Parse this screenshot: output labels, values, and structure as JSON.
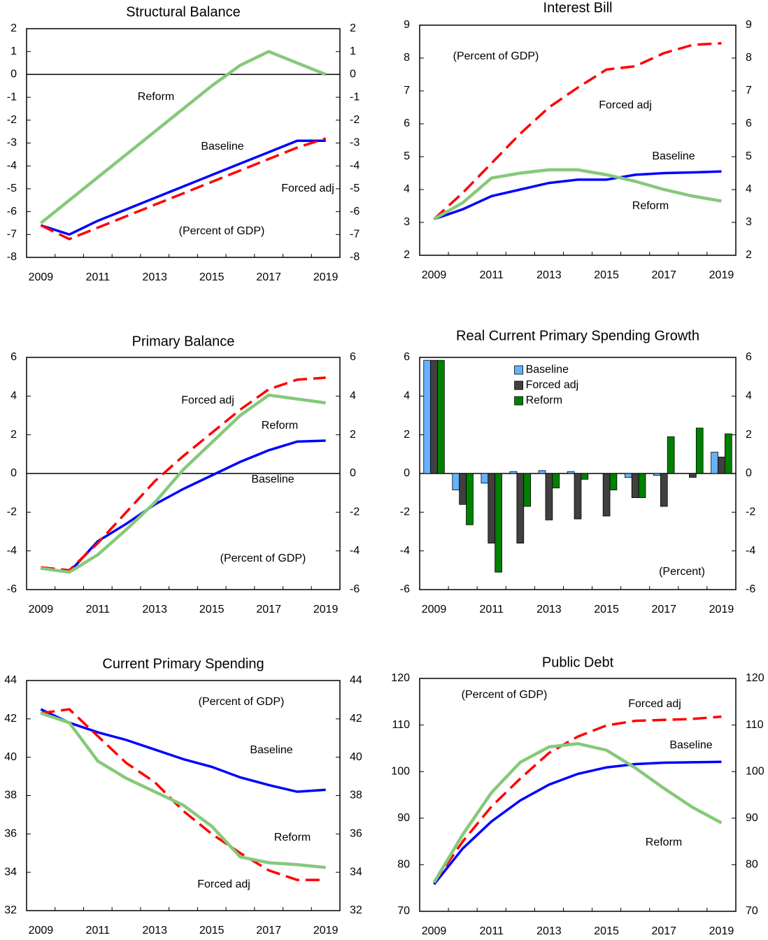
{
  "chart_data": [
    {
      "type": "line",
      "title": "Structural Balance",
      "note": "(Percent of GDP)",
      "categories": [
        "2009",
        null,
        "2011",
        null,
        "2013",
        null,
        "2015",
        null,
        "2017",
        null,
        "2019"
      ],
      "ylim": [
        -8,
        2
      ],
      "yticks": [
        -8,
        -7,
        -6,
        -5,
        -4,
        -3,
        -2,
        -1,
        0,
        1,
        2
      ],
      "zero_line": true,
      "series": [
        {
          "name": "Baseline",
          "color": "#0000ff",
          "values": [
            -6.6,
            -7.0,
            -6.4,
            -5.9,
            -5.4,
            -4.9,
            -4.4,
            -3.9,
            -3.4,
            -2.9,
            -2.9
          ]
        },
        {
          "name": "Forced adj",
          "color": "#ff0000",
          "dashed": true,
          "values": [
            -6.6,
            -7.2,
            -6.7,
            -6.2,
            -5.7,
            -5.2,
            -4.7,
            -4.2,
            -3.7,
            -3.2,
            -2.8
          ]
        },
        {
          "name": "Reform",
          "color": "#86c97a",
          "values": [
            -6.5,
            -5.5,
            -4.5,
            -3.5,
            -2.5,
            -1.5,
            -0.5,
            0.4,
            1.0,
            0.5,
            0.0
          ]
        }
      ]
    },
    {
      "type": "line",
      "title": "Interest Bill",
      "note": "(Percent of GDP)",
      "categories": [
        "2009",
        null,
        "2011",
        null,
        "2013",
        null,
        "2015",
        null,
        "2017",
        null,
        "2019"
      ],
      "ylim": [
        2,
        9
      ],
      "yticks": [
        2,
        3,
        4,
        5,
        6,
        7,
        8,
        9
      ],
      "zero_line": false,
      "series": [
        {
          "name": "Baseline",
          "color": "#0000ff",
          "values": [
            3.1,
            3.4,
            3.8,
            4.0,
            4.2,
            4.3,
            4.3,
            4.45,
            4.5,
            4.52,
            4.55
          ]
        },
        {
          "name": "Forced adj",
          "color": "#ff0000",
          "dashed": true,
          "values": [
            3.1,
            3.9,
            4.8,
            5.7,
            6.5,
            7.1,
            7.65,
            7.75,
            8.15,
            8.4,
            8.45
          ]
        },
        {
          "name": "Reform",
          "color": "#86c97a",
          "values": [
            3.1,
            3.6,
            4.35,
            4.5,
            4.6,
            4.6,
            4.45,
            4.25,
            4.0,
            3.8,
            3.65
          ]
        }
      ]
    },
    {
      "type": "line",
      "title": "Primary Balance",
      "note": "(Percent of GDP)",
      "categories": [
        "2009",
        null,
        "2011",
        null,
        "2013",
        null,
        "2015",
        null,
        "2017",
        null,
        "2019"
      ],
      "ylim": [
        -6,
        6
      ],
      "yticks": [
        -6,
        -4,
        -2,
        0,
        2,
        4,
        6
      ],
      "zero_line": true,
      "series": [
        {
          "name": "Baseline",
          "color": "#0000ff",
          "values": [
            -4.9,
            -5.1,
            -3.5,
            -2.6,
            -1.6,
            -0.8,
            -0.1,
            0.6,
            1.2,
            1.65,
            1.7
          ]
        },
        {
          "name": "Forced adj",
          "color": "#ff0000",
          "dashed": true,
          "values": [
            -4.85,
            -5.0,
            -3.6,
            -2.0,
            -0.4,
            0.9,
            2.1,
            3.3,
            4.35,
            4.85,
            4.95
          ]
        },
        {
          "name": "Reform",
          "color": "#86c97a",
          "values": [
            -4.9,
            -5.1,
            -4.2,
            -2.9,
            -1.5,
            0.2,
            1.6,
            3.0,
            4.05,
            3.85,
            3.65
          ]
        }
      ]
    },
    {
      "type": "bar",
      "title": "Real Current Primary Spending Growth",
      "note": "(Percent)",
      "categories": [
        "2009",
        null,
        "2011",
        null,
        "2013",
        null,
        "2015",
        null,
        "2017",
        null,
        "2019"
      ],
      "ylim": [
        -6,
        6
      ],
      "yticks": [
        -6,
        -4,
        -2,
        0,
        2,
        4,
        6
      ],
      "zero_line": true,
      "legend": "upper center",
      "series": [
        {
          "name": "Baseline",
          "color": "#66b2ff",
          "values": [
            5.85,
            -0.85,
            -0.5,
            0.1,
            0.15,
            0.1,
            0.0,
            -0.2,
            -0.1,
            0.0,
            1.1
          ]
        },
        {
          "name": "Forced adj",
          "color": "#404040",
          "values": [
            5.85,
            -1.6,
            -3.6,
            -3.6,
            -2.4,
            -2.35,
            -2.2,
            -1.25,
            -1.7,
            -0.2,
            0.85
          ]
        },
        {
          "name": "Reform",
          "color": "#008000",
          "values": [
            5.85,
            -2.65,
            -5.1,
            -1.7,
            -0.75,
            -0.3,
            -0.85,
            -1.25,
            1.9,
            2.35,
            2.05
          ]
        }
      ]
    },
    {
      "type": "line",
      "title": "Current Primary Spending",
      "note": "(Percent of GDP)",
      "categories": [
        "2009",
        null,
        "2011",
        null,
        "2013",
        null,
        "2015",
        null,
        "2017",
        null,
        "2019"
      ],
      "ylim": [
        32,
        44
      ],
      "yticks": [
        32,
        34,
        36,
        38,
        40,
        42,
        44
      ],
      "zero_line": false,
      "series": [
        {
          "name": "Baseline",
          "color": "#0000ff",
          "values": [
            42.5,
            41.8,
            41.3,
            40.9,
            40.4,
            39.9,
            39.5,
            38.95,
            38.55,
            38.2,
            38.3
          ]
        },
        {
          "name": "Forced adj",
          "color": "#ff0000",
          "dashed": true,
          "values": [
            42.3,
            42.5,
            41.1,
            39.7,
            38.7,
            37.2,
            36.0,
            35.0,
            34.1,
            33.6,
            33.6
          ]
        },
        {
          "name": "Reform",
          "color": "#86c97a",
          "values": [
            42.3,
            41.8,
            39.8,
            38.9,
            38.2,
            37.5,
            36.4,
            34.8,
            34.5,
            34.4,
            34.25
          ]
        }
      ]
    },
    {
      "type": "line",
      "title": "Public Debt",
      "note": "(Percent of GDP)",
      "categories": [
        "2009",
        null,
        "2011",
        null,
        "2013",
        null,
        "2015",
        null,
        "2017",
        null,
        "2019"
      ],
      "ylim": [
        70,
        120
      ],
      "yticks": [
        70,
        80,
        90,
        100,
        110,
        120
      ],
      "zero_line": false,
      "series": [
        {
          "name": "Baseline",
          "color": "#0000ff",
          "values": [
            75.8,
            83.5,
            89.3,
            93.8,
            97.2,
            99.5,
            100.9,
            101.6,
            101.9,
            102.0,
            102.1
          ]
        },
        {
          "name": "Forced adj",
          "color": "#ff0000",
          "dashed": true,
          "values": [
            76.2,
            85.0,
            92.5,
            98.5,
            104.0,
            107.5,
            109.9,
            110.9,
            111.1,
            111.3,
            111.8
          ]
        },
        {
          "name": "Reform",
          "color": "#86c97a",
          "values": [
            76.2,
            86.5,
            95.5,
            102.0,
            105.3,
            106.0,
            104.6,
            100.8,
            96.4,
            92.3,
            89.0
          ]
        }
      ]
    }
  ]
}
